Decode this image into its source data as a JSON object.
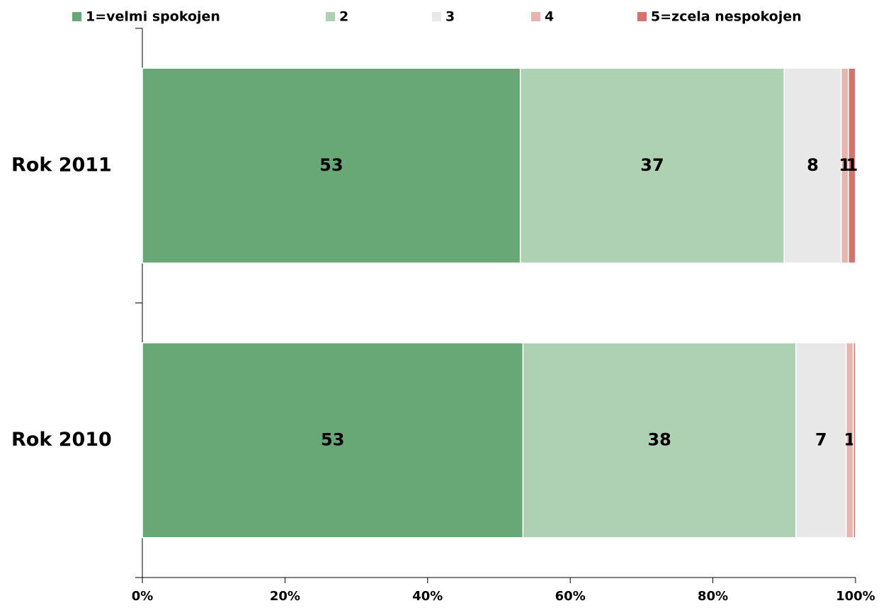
{
  "chart_data": {
    "type": "bar",
    "orientation": "horizontal",
    "stack": "percent",
    "categories": [
      "Rok 2011",
      "Rok 2010"
    ],
    "series": [
      {
        "name": "1=velmi spokojen",
        "color": "#68a877",
        "values": [
          53,
          53
        ]
      },
      {
        "name": "2",
        "color": "#aed1b3",
        "values": [
          37,
          38
        ]
      },
      {
        "name": "3",
        "color": "#e8e8e8",
        "values": [
          8,
          7
        ]
      },
      {
        "name": "4",
        "color": "#e8b4ae",
        "values": [
          1,
          1
        ]
      },
      {
        "name": "5=zcela nespokojen",
        "color": "#d4736e",
        "values": [
          1,
          0.3
        ],
        "value_labels": [
          "1",
          null
        ]
      }
    ],
    "xlim": [
      0,
      100
    ],
    "xticks": [
      {
        "value": 0,
        "label": "0%"
      },
      {
        "value": 20,
        "label": "20%"
      },
      {
        "value": 40,
        "label": "40%"
      },
      {
        "value": 60,
        "label": "60%"
      },
      {
        "value": 80,
        "label": "80%"
      },
      {
        "value": 100,
        "label": "100%"
      }
    ],
    "legend": "top"
  }
}
